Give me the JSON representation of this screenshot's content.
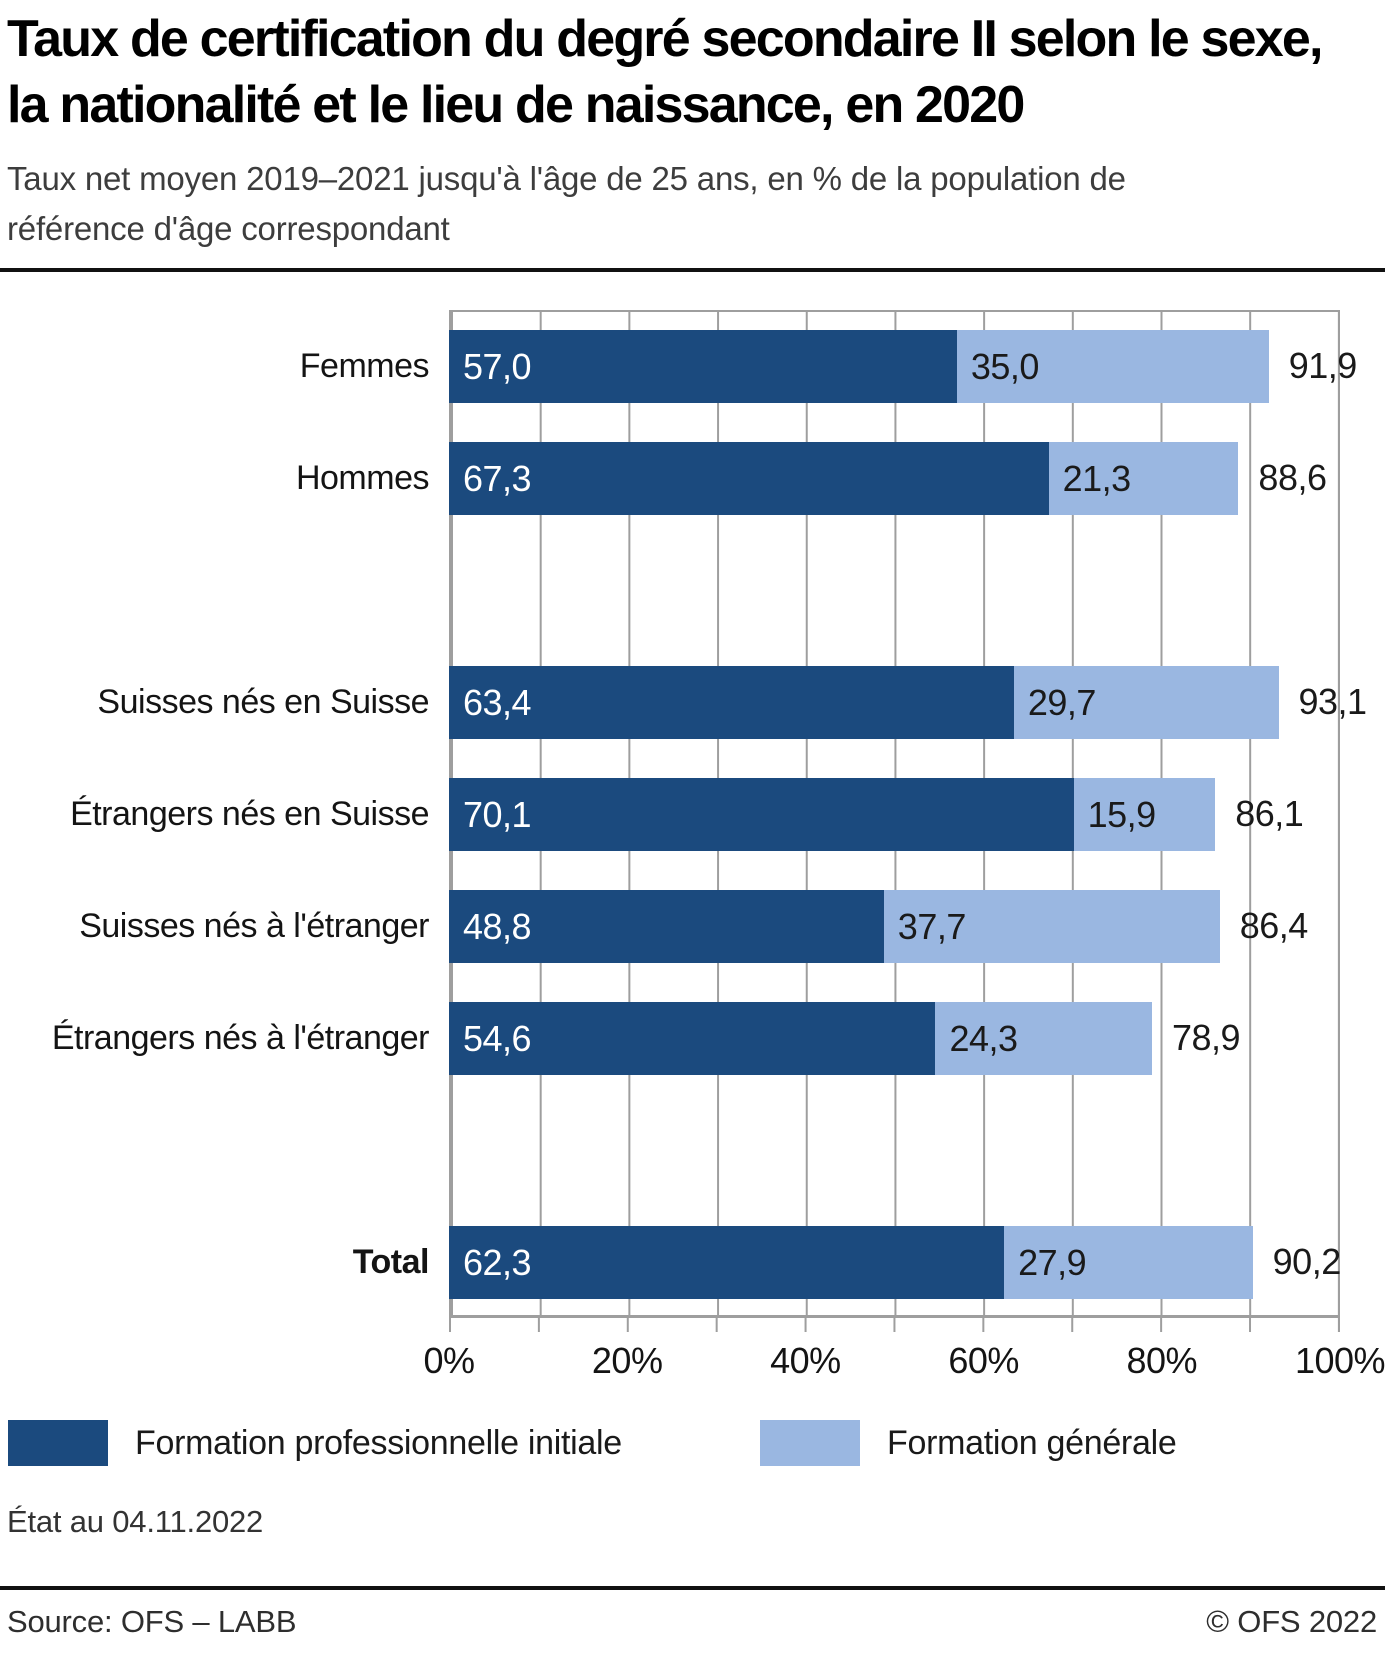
{
  "page": {
    "title": "Taux de certification du degré secondaire II selon le sexe, la nationalité et le lieu de naissance, en 2020",
    "subtitle": "Taux net moyen 2019–2021 jusqu'à l'âge de 25 ans, en % de la population de référence d'âge correspondant",
    "note": "État au 04.11.2022",
    "source": "Source: OFS – LABB",
    "copyright": "© OFS 2022"
  },
  "chart_data": {
    "type": "bar",
    "orientation": "horizontal",
    "stacked": true,
    "unit": "%",
    "xlim": [
      0,
      100
    ],
    "x_ticks": [
      "0%",
      "20%",
      "40%",
      "60%",
      "80%",
      "100%"
    ],
    "gridline_step_percent": 10,
    "grid": true,
    "legend_position": "bottom",
    "series": [
      {
        "name": "Formation professionnelle initiale",
        "color": "#1b4a7e"
      },
      {
        "name": "Formation générale",
        "color": "#9ab7e1"
      }
    ],
    "groups": [
      {
        "rows": [
          {
            "label": "Femmes",
            "values": [
              57.0,
              35.0
            ],
            "value_labels": [
              "57,0",
              "35,0"
            ],
            "total": 91.9,
            "total_label": "91,9"
          },
          {
            "label": "Hommes",
            "values": [
              67.3,
              21.3
            ],
            "value_labels": [
              "67,3",
              "21,3"
            ],
            "total": 88.6,
            "total_label": "88,6"
          }
        ]
      },
      {
        "rows": [
          {
            "label": "Suisses nés en Suisse",
            "values": [
              63.4,
              29.7
            ],
            "value_labels": [
              "63,4",
              "29,7"
            ],
            "total": 93.1,
            "total_label": "93,1"
          },
          {
            "label": "Étrangers nés en Suisse",
            "values": [
              70.1,
              15.9
            ],
            "value_labels": [
              "70,1",
              "15,9"
            ],
            "total": 86.1,
            "total_label": "86,1"
          },
          {
            "label": "Suisses nés à l'étranger",
            "values": [
              48.8,
              37.7
            ],
            "value_labels": [
              "48,8",
              "37,7"
            ],
            "total": 86.4,
            "total_label": "86,4"
          },
          {
            "label": "Étrangers nés à l'étranger",
            "values": [
              54.6,
              24.3
            ],
            "value_labels": [
              "54,6",
              "24,3"
            ],
            "total": 78.9,
            "total_label": "78,9"
          }
        ]
      },
      {
        "rows": [
          {
            "label": "Total",
            "emphasis": true,
            "values": [
              62.3,
              27.9
            ],
            "value_labels": [
              "62,3",
              "27,9"
            ],
            "total": 90.2,
            "total_label": "90,2"
          }
        ]
      }
    ]
  }
}
